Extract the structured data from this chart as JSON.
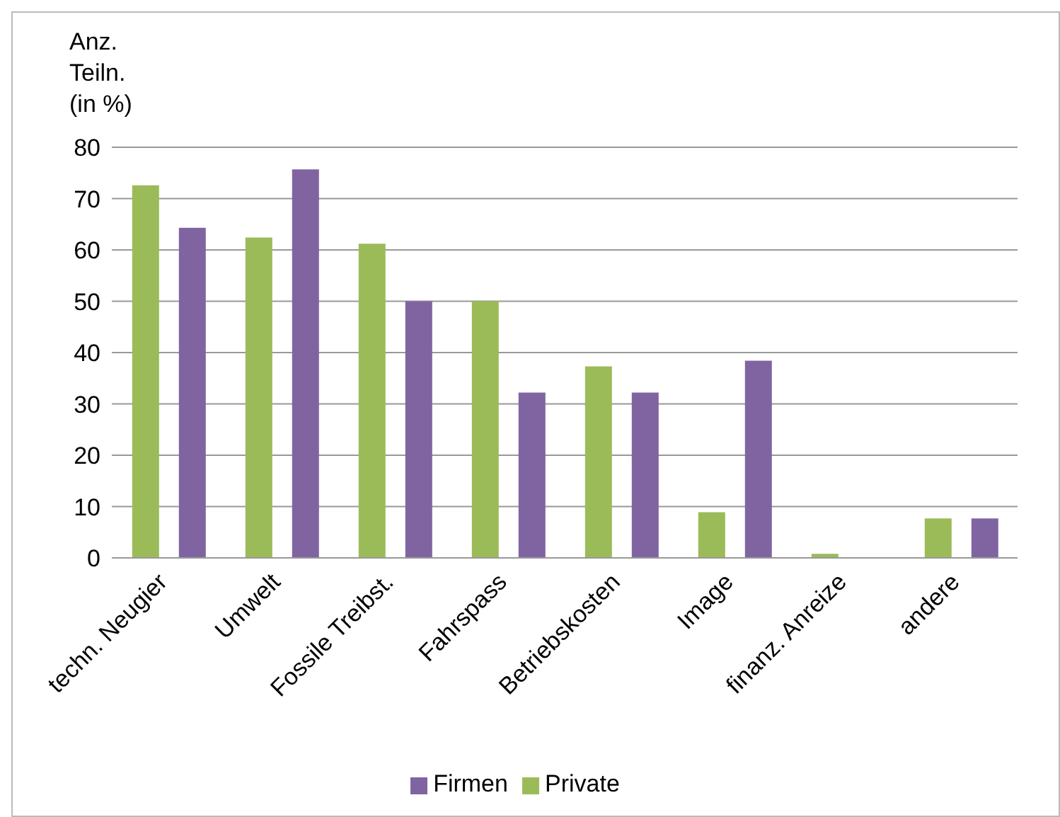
{
  "chart_data": {
    "type": "bar",
    "ylabel": "Anz.\nTeiln.\n(in %)",
    "categories": [
      "techn. Neugier",
      "Umwelt",
      "Fossile Treibst.",
      "Fahrspass",
      "Betriebskosten",
      "Image",
      "finanz. Anreize",
      "andere"
    ],
    "series": [
      {
        "name": "Private",
        "color": "#9bbb59",
        "values": [
          72.6,
          62.4,
          61.2,
          50,
          37.3,
          8.9,
          0.8,
          7.7
        ]
      },
      {
        "name": "Firmen",
        "color": "#8064a2",
        "values": [
          64.3,
          75.7,
          50,
          32.2,
          32.2,
          38.4,
          0,
          7.7
        ]
      }
    ],
    "ylim": [
      0,
      80
    ],
    "yticks": [
      0,
      10,
      20,
      30,
      40,
      50,
      60,
      70,
      80
    ],
    "grid": "y",
    "legend": "bottom"
  }
}
